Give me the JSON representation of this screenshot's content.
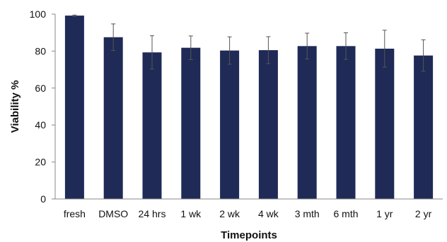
{
  "chart_data": {
    "type": "bar",
    "title": "",
    "xlabel": "Timepoints",
    "ylabel": "Viability %",
    "ylim": [
      0,
      100
    ],
    "yticks": [
      0,
      20,
      40,
      60,
      80,
      100
    ],
    "grid": false,
    "legend": "none",
    "categories": [
      "fresh",
      "DMSO",
      "24 hrs",
      "1 wk",
      "2 wk",
      "4 wk",
      "3 mth",
      "6 mth",
      "1 yr",
      "2 yr"
    ],
    "values": [
      99.2,
      87.5,
      79.3,
      81.8,
      80.3,
      80.5,
      82.7,
      82.7,
      81.3,
      77.6
    ],
    "errors": [
      0.3,
      7.2,
      9.0,
      6.4,
      7.4,
      7.3,
      7.0,
      7.2,
      10.0,
      8.5
    ],
    "bar_color": "#1f2a56",
    "error_color": "#555555"
  }
}
